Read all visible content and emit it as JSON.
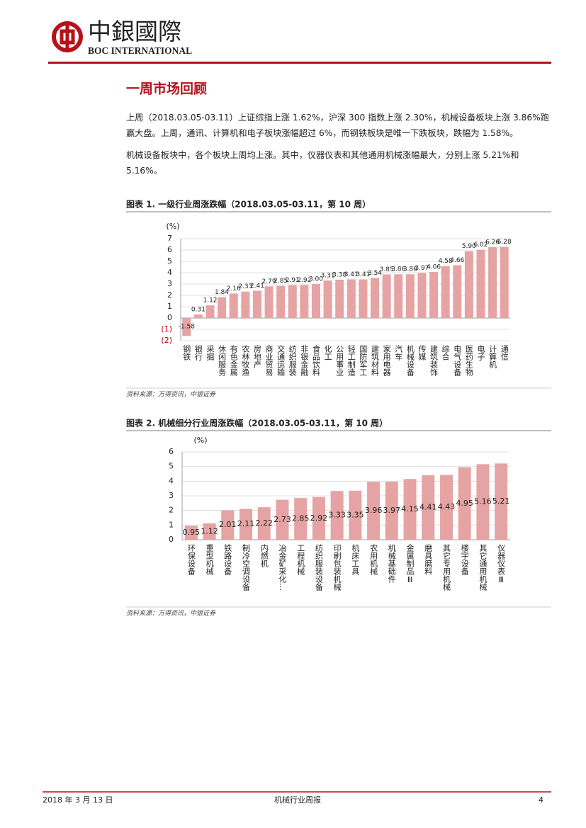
{
  "header": {
    "logo_text": "中銀國際",
    "logo_subtext": "BOC INTERNATIONAL"
  },
  "section_title": "一周市场回顾",
  "paragraphs": [
    "上周（2018.03.05-03.11）上证综指上涨 1.62%，沪深 300 指数上涨 2.30%，机械设备板块上涨 3.86%跑赢大盘。上周，通讯、计算机和电子板块涨幅超过 6%，而钢铁板块是唯一下跌板块，跌幅为 1.58%。",
    "机械设备板块中，各个板块上周均上涨。其中，仪器仪表和其他通用机械涨幅最大，分别上涨 5.21%和 5.16%。"
  ],
  "chart_data": [
    {
      "type": "bar",
      "title": "图表 1. 一级行业周涨跌幅（2018.03.05-03.11，第 10 周）",
      "y_label": "(%)",
      "categories": [
        "钢铁",
        "银行",
        "采掘",
        "休闲服务",
        "有色金属",
        "农林牧渔",
        "房地产",
        "商业贸易",
        "交通运输",
        "纺织服装",
        "非银金融",
        "食品饮料",
        "化工",
        "公用事业",
        "轻工制造",
        "国防军工",
        "建筑材料",
        "家用电器",
        "汽车",
        "机械设备",
        "传媒",
        "建筑装饰",
        "综合",
        "电气设备",
        "医药生物",
        "电子",
        "计算机",
        "通信"
      ],
      "values": [
        -1.58,
        0.31,
        1.12,
        1.84,
        2.16,
        2.33,
        2.41,
        2.79,
        2.85,
        2.91,
        2.92,
        3.0,
        3.31,
        3.38,
        3.41,
        3.41,
        3.54,
        3.85,
        3.86,
        3.86,
        3.97,
        4.06,
        4.58,
        4.66,
        5.9,
        6.02,
        6.26,
        6.28
      ],
      "value_labels": [
        "-1.58",
        "0.31",
        "1.12",
        "1.84",
        "2.16",
        "2.33",
        "2.41",
        "2.79",
        "2.85",
        "2.91",
        "2.92",
        "3.00",
        "3.31",
        "3.38",
        "3.41",
        "3.41",
        "3.54",
        "3.85",
        "3.86",
        "3.86",
        "3.97",
        "4.06",
        "4.58",
        "4.66",
        "5.90",
        "6.02",
        "6.26",
        "6.28"
      ],
      "color": "#e6a3a3",
      "negative_tick_color": "#c00000",
      "ylim": [
        -2,
        7
      ],
      "yticks": [
        {
          "value": -2,
          "label": "(2)"
        },
        {
          "value": -1,
          "label": "(1)"
        },
        0,
        1,
        2,
        3,
        4,
        5,
        6,
        7
      ],
      "grid": true,
      "source": "资料来源：万得资讯，中银证券"
    },
    {
      "type": "bar",
      "title": "图表 2. 机械细分行业周涨跌幅（2018.03.05-03.11，第 10 周）",
      "y_label": "(%)",
      "categories": [
        "环保设备",
        "重型机械",
        "铁路设备",
        "制冷空调设备",
        "内燃机",
        "冶金矿采化…",
        "工程机械",
        "纺织服装设备",
        "印刷包装机械",
        "机床工具",
        "农用机械",
        "机械基础件",
        "金属制品Ⅲ",
        "磨具磨料",
        "其它专用机械",
        "楼宇设备",
        "其它通用机械",
        "仪器仪表Ⅲ"
      ],
      "values": [
        0.95,
        1.12,
        2.01,
        2.11,
        2.22,
        2.73,
        2.85,
        2.92,
        3.33,
        3.35,
        3.96,
        3.97,
        4.15,
        4.41,
        4.43,
        4.95,
        5.16,
        5.21
      ],
      "color": "#e6a3a3",
      "ylim": [
        0,
        6
      ],
      "yticks": [
        0,
        1,
        2,
        3,
        4,
        5,
        6
      ],
      "grid": true,
      "source": "资料来源：万得资讯，中银证券"
    }
  ],
  "footer": {
    "date": "2018 年 3 月 13 日",
    "report": "机械行业周报",
    "page": "4"
  }
}
